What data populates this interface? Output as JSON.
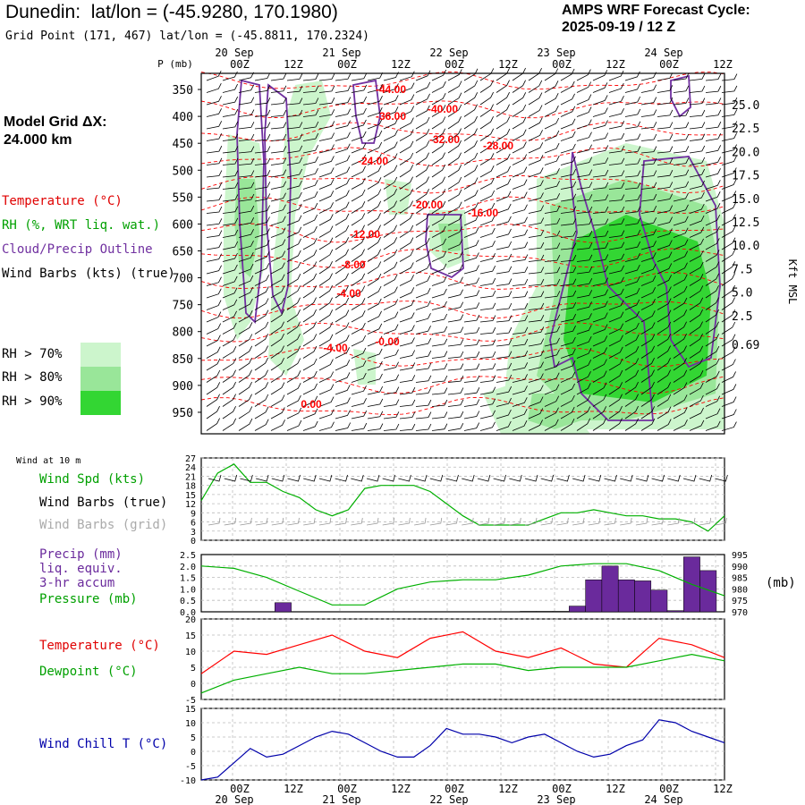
{
  "header": {
    "station": "Dunedin:",
    "latlon": "lat/lon = (-45.9280, 170.1980)",
    "grid_point": "Grid Point (171, 467) lat/lon = (-45.8811, 170.2324)",
    "cycle_label": "AMPS WRF Forecast Cycle:",
    "cycle_value": "2025-09-19 / 12  Z",
    "model_grid_label": "Model Grid ΔX:",
    "model_grid_value": " 24.000 km"
  },
  "colors": {
    "temperature": "#ff0000",
    "rh": "#00b000",
    "cloud": "#7030a0",
    "wind_black": "#000000",
    "wind_grid": "#999999",
    "pressure": "#00b000",
    "precip": "#6a2a9c",
    "dewpoint": "#00b000",
    "windchill": "#0000aa",
    "rh70": "#ccf5cc",
    "rh80": "#99e699",
    "rh90": "#33d633"
  },
  "legend_upper": {
    "temperature": "Temperature (°C)",
    "rh": "RH (%, WRT liq. wat.)",
    "cloud": "Cloud/Precip Outline",
    "wind": "Wind Barbs (kts) (true)",
    "rh70": "RH > 70%",
    "rh80": "RH > 80%",
    "rh90": "RH > 90%"
  },
  "time_axis": {
    "top_dates": [
      "20 Sep",
      "21 Sep",
      "22 Sep",
      "23 Sep",
      "24 Sep"
    ],
    "ticks": [
      "00Z",
      "12Z",
      "00Z",
      "12Z",
      "00Z",
      "12Z",
      "00Z",
      "12Z",
      "00Z",
      "12Z"
    ],
    "bottom_dates": [
      "20 Sep",
      "21 Sep",
      "22 Sep",
      "23 Sep",
      "24 Sep"
    ]
  },
  "chart_data": [
    {
      "type": "heatmap",
      "name": "cross-section",
      "ylabel_left": "P (mb)",
      "ylabel_right": "Kft MSL",
      "pressure_levels": [
        350,
        400,
        450,
        500,
        550,
        600,
        650,
        700,
        750,
        800,
        850,
        900,
        950
      ],
      "height_labels": [
        "25.0",
        "22.5",
        "20.0",
        "17.5",
        "15.0",
        "12.5",
        "10.0",
        "7.5",
        "5.0",
        "2.5",
        "0.69"
      ],
      "temperature_contour_labels": [
        "-44.00",
        "-40.00",
        "-36.00",
        "-32.00",
        "-28.00",
        "-24.00",
        "-20.00",
        "-16.00",
        "-12.00",
        "-8.00",
        "-4.00",
        "-4.00",
        "-0.00",
        "0.00"
      ],
      "rh_levels": [
        "RH > 70%",
        "RH > 80%",
        "RH > 90%"
      ]
    },
    {
      "type": "line",
      "name": "wind",
      "title": "Wind at 10 m",
      "labels": [
        "Wind Spd (kts)",
        "Wind Barbs (true)",
        "Wind Barbs (grid)"
      ],
      "y_ticks": [
        27,
        24,
        21,
        18,
        15,
        12,
        9,
        6,
        3,
        0
      ],
      "ylim": [
        0,
        27
      ],
      "x": [
        0,
        3,
        6,
        9,
        12,
        15,
        18,
        21,
        24,
        27,
        30,
        33,
        36,
        39,
        42,
        45,
        48,
        51,
        54,
        57,
        60,
        63,
        66,
        69,
        72,
        75,
        78,
        81,
        84,
        87,
        90,
        93,
        96
      ],
      "values": [
        13,
        22,
        25,
        19,
        19,
        16,
        14,
        10,
        8,
        10,
        17,
        18,
        18,
        18,
        16,
        12,
        8,
        5,
        5,
        5,
        5,
        7,
        9,
        9,
        10,
        9,
        8,
        8,
        7,
        7,
        6,
        3,
        8
      ]
    },
    {
      "type": "bar",
      "name": "precip-pressure",
      "labels": [
        "Precip (mm)",
        "liq. equiv.",
        "3-hr accum",
        "Pressure (mb)"
      ],
      "y_ticks_left": [
        "2.5",
        "2.0",
        "1.5",
        "1.0",
        "0.5",
        "0.0"
      ],
      "y_ticks_right": [
        "995",
        "990",
        "985",
        "980",
        "975",
        "970"
      ],
      "right_unit": "(mb)",
      "ylim_precip": [
        0,
        2.5
      ],
      "ylim_pressure": [
        970,
        995
      ],
      "precip_x": [
        15,
        60,
        63,
        66,
        69,
        72,
        75,
        78,
        81,
        84,
        87,
        90,
        93
      ],
      "precip": [
        0.4,
        0.02,
        0.02,
        0.02,
        0.25,
        1.4,
        2.0,
        1.4,
        1.35,
        0.95,
        0.05,
        2.4,
        1.8
      ],
      "pressure_x": [
        0,
        6,
        12,
        18,
        24,
        30,
        36,
        42,
        48,
        54,
        60,
        66,
        72,
        78,
        84,
        90,
        96
      ],
      "pressure": [
        990,
        989,
        985,
        979,
        973,
        973,
        980,
        983,
        984,
        984,
        986,
        990,
        991,
        991,
        988,
        982,
        977
      ]
    },
    {
      "type": "line",
      "name": "temperature-dewpoint",
      "labels": [
        "Temperature (°C)",
        "Dewpoint (°C)"
      ],
      "y_ticks": [
        20,
        15,
        10,
        5,
        0,
        -5
      ],
      "ylim": [
        -5,
        20
      ],
      "x": [
        0,
        6,
        12,
        18,
        24,
        30,
        36,
        42,
        48,
        54,
        60,
        66,
        72,
        78,
        84,
        90,
        96
      ],
      "series": [
        {
          "name": "Temperature (°C)",
          "values": [
            3,
            10,
            9,
            12,
            15,
            10,
            8,
            14,
            16,
            10,
            8,
            11,
            6,
            5,
            14,
            12,
            8
          ]
        },
        {
          "name": "Dewpoint (°C)",
          "values": [
            -3,
            1,
            3,
            5,
            3,
            3,
            4,
            5,
            6,
            6,
            4,
            5,
            5,
            5,
            7,
            9,
            7
          ]
        }
      ]
    },
    {
      "type": "line",
      "name": "windchill",
      "labels": [
        "Wind Chill T (°C)"
      ],
      "y_ticks": [
        15,
        10,
        5,
        0,
        -5,
        -10
      ],
      "ylim": [
        -10,
        15
      ],
      "x": [
        0,
        3,
        6,
        9,
        12,
        15,
        18,
        21,
        24,
        27,
        30,
        33,
        36,
        39,
        42,
        45,
        48,
        51,
        54,
        57,
        60,
        63,
        66,
        69,
        72,
        75,
        78,
        81,
        84,
        87,
        90,
        93,
        96
      ],
      "values": [
        -10,
        -9,
        -4,
        1,
        -2,
        -1,
        2,
        5,
        7,
        6,
        3,
        0,
        -2,
        -2,
        2,
        8,
        6,
        6,
        5,
        3,
        5,
        6,
        3,
        0,
        -2,
        -1,
        2,
        4,
        11,
        10,
        7,
        5,
        3
      ]
    }
  ]
}
